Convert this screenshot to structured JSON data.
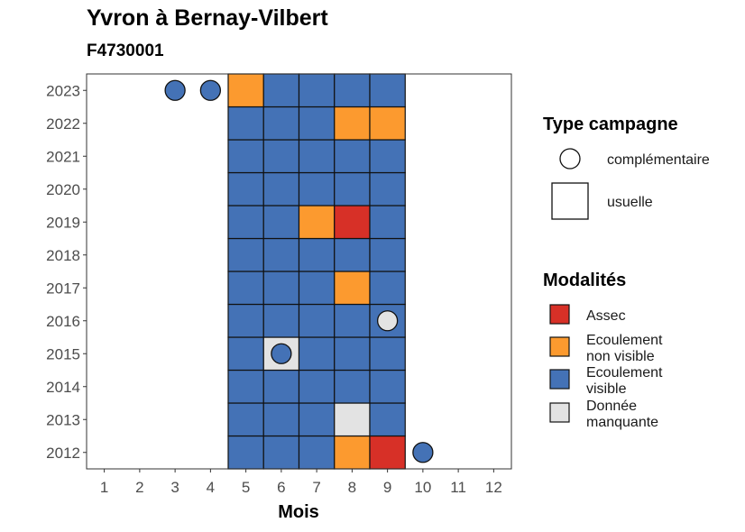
{
  "title": "Yvron à Bernay-Vilbert",
  "subtitle": "F4730001",
  "chart_data": {
    "type": "heatmap",
    "title": "Yvron à Bernay-Vilbert",
    "subtitle": "F4730001",
    "xlabel": "Mois",
    "ylabel": "",
    "x_ticks": [
      "1",
      "2",
      "3",
      "4",
      "5",
      "6",
      "7",
      "8",
      "9",
      "10",
      "11",
      "12"
    ],
    "y_ticks": [
      "2012",
      "2013",
      "2014",
      "2015",
      "2016",
      "2017",
      "2018",
      "2019",
      "2020",
      "2021",
      "2022",
      "2023"
    ],
    "xlim": [
      0.5,
      12.5
    ],
    "ylim": [
      2011.5,
      2023.5
    ],
    "grid": false,
    "colors": {
      "Assec": "#d73027",
      "Ecoulement non visible": "#fc9a2f",
      "Ecoulement visible": "#4472b6",
      "Donnée manquante": "#e3e3e3"
    },
    "usuelle": [
      {
        "year": 2012,
        "values": {
          "5": "Ecoulement visible",
          "6": "Ecoulement visible",
          "7": "Ecoulement visible",
          "8": "Ecoulement non visible",
          "9": "Assec"
        }
      },
      {
        "year": 2013,
        "values": {
          "5": "Ecoulement visible",
          "6": "Ecoulement visible",
          "7": "Ecoulement visible",
          "8": "Donnée manquante",
          "9": "Ecoulement visible"
        }
      },
      {
        "year": 2014,
        "values": {
          "5": "Ecoulement visible",
          "6": "Ecoulement visible",
          "7": "Ecoulement visible",
          "8": "Ecoulement visible",
          "9": "Ecoulement visible"
        }
      },
      {
        "year": 2015,
        "values": {
          "5": "Ecoulement visible",
          "6": "Donnée manquante",
          "7": "Ecoulement visible",
          "8": "Ecoulement visible",
          "9": "Ecoulement visible"
        }
      },
      {
        "year": 2016,
        "values": {
          "5": "Ecoulement visible",
          "6": "Ecoulement visible",
          "7": "Ecoulement visible",
          "8": "Ecoulement visible",
          "9": "Ecoulement visible"
        }
      },
      {
        "year": 2017,
        "values": {
          "5": "Ecoulement visible",
          "6": "Ecoulement visible",
          "7": "Ecoulement visible",
          "8": "Ecoulement non visible",
          "9": "Ecoulement visible"
        }
      },
      {
        "year": 2018,
        "values": {
          "5": "Ecoulement visible",
          "6": "Ecoulement visible",
          "7": "Ecoulement visible",
          "8": "Ecoulement visible",
          "9": "Ecoulement visible"
        }
      },
      {
        "year": 2019,
        "values": {
          "5": "Ecoulement visible",
          "6": "Ecoulement visible",
          "7": "Ecoulement non visible",
          "8": "Assec",
          "9": "Ecoulement visible"
        }
      },
      {
        "year": 2020,
        "values": {
          "5": "Ecoulement visible",
          "6": "Ecoulement visible",
          "7": "Ecoulement visible",
          "8": "Ecoulement visible",
          "9": "Ecoulement visible"
        }
      },
      {
        "year": 2021,
        "values": {
          "5": "Ecoulement visible",
          "6": "Ecoulement visible",
          "7": "Ecoulement visible",
          "8": "Ecoulement visible",
          "9": "Ecoulement visible"
        }
      },
      {
        "year": 2022,
        "values": {
          "5": "Ecoulement visible",
          "6": "Ecoulement visible",
          "7": "Ecoulement visible",
          "8": "Ecoulement non visible",
          "9": "Ecoulement non visible"
        }
      },
      {
        "year": 2023,
        "values": {
          "5": "Ecoulement non visible",
          "6": "Ecoulement visible",
          "7": "Ecoulement visible",
          "8": "Ecoulement visible",
          "9": "Ecoulement visible"
        }
      }
    ],
    "complementaire": [
      {
        "year": 2023,
        "month": 3,
        "modalite": "Ecoulement visible"
      },
      {
        "year": 2023,
        "month": 4,
        "modalite": "Ecoulement visible"
      },
      {
        "year": 2016,
        "month": 9,
        "modalite": "Donnée manquante"
      },
      {
        "year": 2015,
        "month": 6,
        "modalite": "Ecoulement visible"
      },
      {
        "year": 2012,
        "month": 10,
        "modalite": "Ecoulement visible"
      }
    ],
    "legend": {
      "placement": "right",
      "type_title": "Type campagne",
      "type_entries": [
        "complémentaire",
        "usuelle"
      ],
      "modalites_title": "Modalités",
      "modalites_entries": [
        {
          "key": "Assec",
          "lines": [
            "Assec"
          ]
        },
        {
          "key": "Ecoulement non visible",
          "lines": [
            "Ecoulement",
            "non visible"
          ]
        },
        {
          "key": "Ecoulement visible",
          "lines": [
            "Ecoulement",
            "visible"
          ]
        },
        {
          "key": "Donnée manquante",
          "lines": [
            "Donnée",
            "manquante"
          ]
        }
      ]
    }
  }
}
